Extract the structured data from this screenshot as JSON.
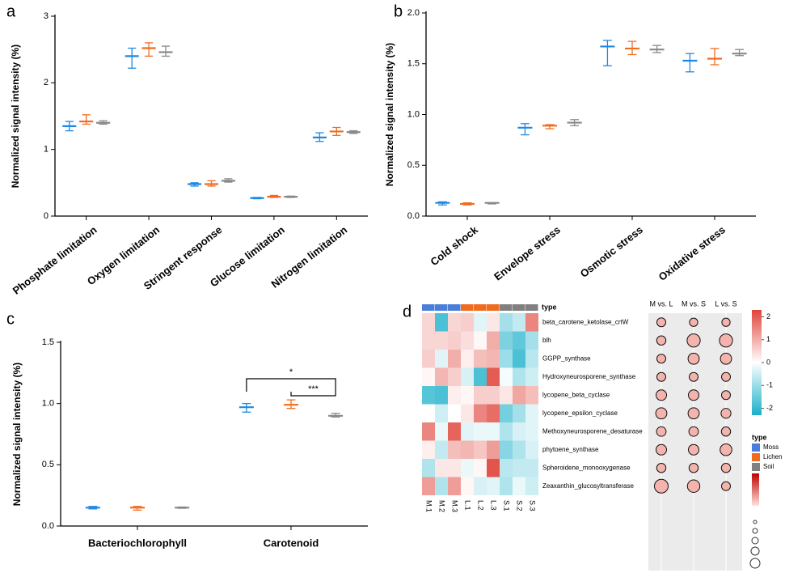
{
  "chart_data": [
    {
      "type": "errorbar",
      "panel_label": "a",
      "y_label": "Normalized signal intensity (%)",
      "categories": [
        "Phosphate limitation",
        "Oxygen limitation",
        "Stringent response",
        "Glucose limitation",
        "Nitrogen limitation"
      ],
      "ylim": [
        0,
        3
      ],
      "yticks": [
        0,
        1,
        2,
        3
      ],
      "series": [
        {
          "color": "#1f88e5",
          "values": [
            1.35,
            2.4,
            0.48,
            0.27,
            1.18
          ],
          "low": [
            1.28,
            2.22,
            0.45,
            0.26,
            1.12
          ],
          "high": [
            1.42,
            2.52,
            0.5,
            0.28,
            1.25
          ]
        },
        {
          "color": "#f26b1d",
          "values": [
            1.42,
            2.52,
            0.48,
            0.29,
            1.27
          ],
          "low": [
            1.38,
            2.4,
            0.45,
            0.28,
            1.21
          ],
          "high": [
            1.52,
            2.6,
            0.53,
            0.31,
            1.33
          ]
        },
        {
          "color": "#888888",
          "values": [
            1.4,
            2.46,
            0.53,
            0.29,
            1.26
          ],
          "low": [
            1.38,
            2.4,
            0.51,
            0.28,
            1.24
          ],
          "high": [
            1.43,
            2.55,
            0.56,
            0.3,
            1.28
          ]
        }
      ]
    },
    {
      "type": "errorbar",
      "panel_label": "b",
      "y_label": "Normalized signal intensity (%)",
      "categories": [
        "Cold shock",
        "Envelope stress",
        "Osmotic stress",
        "Oxidative stress"
      ],
      "ylim": [
        0,
        2
      ],
      "yticks": [
        {
          "value": 0,
          "label": "0.0"
        },
        0.5,
        {
          "value": 1,
          "label": "1.0"
        },
        1.5,
        {
          "value": 2,
          "label": "2.0"
        }
      ],
      "series": [
        {
          "color": "#1f88e5",
          "values": [
            0.13,
            0.87,
            1.67,
            1.53
          ],
          "low": [
            0.11,
            0.8,
            1.48,
            1.42
          ],
          "high": [
            0.14,
            0.91,
            1.73,
            1.6
          ]
        },
        {
          "color": "#f26b1d",
          "values": [
            0.12,
            0.89,
            1.65,
            1.55
          ],
          "low": [
            0.11,
            0.86,
            1.59,
            1.49
          ],
          "high": [
            0.13,
            0.9,
            1.72,
            1.65
          ]
        },
        {
          "color": "#888888",
          "values": [
            0.13,
            0.92,
            1.64,
            1.6
          ],
          "low": [
            0.12,
            0.89,
            1.61,
            1.58
          ],
          "high": [
            0.13,
            0.95,
            1.68,
            1.64
          ]
        }
      ]
    },
    {
      "type": "errorbar",
      "panel_label": "c",
      "y_label": "Normalized signal intensity (%)",
      "categories": [
        "Bacteriochlorophyll",
        "Carotenoid"
      ],
      "ylim": [
        0,
        1.5
      ],
      "yticks": [
        {
          "value": 0,
          "label": "0.0"
        },
        0.5,
        {
          "value": 1,
          "label": "1.0"
        },
        1.5
      ],
      "annotations": [
        "*",
        "***"
      ],
      "series": [
        {
          "color": "#1f88e5",
          "values": [
            0.15,
            0.97
          ],
          "low": [
            0.14,
            0.93
          ],
          "high": [
            0.16,
            1.0
          ]
        },
        {
          "color": "#f26b1d",
          "values": [
            0.15,
            0.99
          ],
          "low": [
            0.13,
            0.96
          ],
          "high": [
            0.16,
            1.03
          ]
        },
        {
          "color": "#888888",
          "values": [
            0.15,
            0.9
          ],
          "low": [
            0.145,
            0.89
          ],
          "high": [
            0.155,
            0.92
          ]
        }
      ]
    },
    {
      "type": "heatmap",
      "panel_label": "d",
      "legend_title": "type",
      "legend": [
        {
          "name": "Moss",
          "color": "#4a7fd9"
        },
        {
          "name": "Lichen",
          "color": "#f06a1f"
        },
        {
          "name": "Soil",
          "color": "#808080"
        }
      ],
      "columns": [
        "M.1",
        "M.2",
        "M.3",
        "L.1",
        "L.2",
        "L.3",
        "S.1",
        "S.2",
        "S.3"
      ],
      "rows": [
        "beta_carotene_ketolase_crtW",
        "blh",
        "GGPP_synthase",
        "Hydroxyneurosporene_synthase",
        "lycopene_beta_cyclase",
        "lycopene_epsilon_cyclase",
        "Methoxyneurosporene_desaturase",
        "phytoene_synthase",
        "Spheroidene_monooxygenase",
        "Zeaxanthin_glucosyltransferase"
      ],
      "values": [
        [
          0.5,
          -1.8,
          0.5,
          0.6,
          -0.3,
          0.3,
          -0.9,
          -0.6,
          1.5
        ],
        [
          0.5,
          0.5,
          0.6,
          0.4,
          0.1,
          1.0,
          -1.3,
          -1.6,
          -0.9
        ],
        [
          0.6,
          -0.3,
          1.0,
          0.2,
          0.8,
          0.9,
          -1.0,
          -1.8,
          -0.7
        ],
        [
          0.1,
          0.9,
          0.6,
          -0.4,
          -1.8,
          2.0,
          -0.1,
          -0.8,
          -0.5
        ],
        [
          -1.7,
          -1.8,
          0.2,
          0.1,
          0.6,
          0.6,
          0.3,
          1.1,
          0.8
        ],
        [
          0.0,
          -0.5,
          0.0,
          0.3,
          1.5,
          1.8,
          -1.4,
          -0.9,
          -0.3
        ],
        [
          1.5,
          -0.2,
          1.9,
          -0.3,
          -0.2,
          -0.2,
          -0.8,
          -0.4,
          -0.3
        ],
        [
          0.2,
          -0.6,
          0.8,
          0.9,
          0.7,
          1.2,
          -1.2,
          -0.8,
          -0.4
        ],
        [
          -0.8,
          0.3,
          0.3,
          -0.2,
          0.1,
          2.1,
          -0.7,
          -0.6,
          -0.6
        ],
        [
          1.2,
          -0.8,
          1.2,
          0.1,
          -0.4,
          -0.3,
          -0.8,
          -0.2,
          -0.5
        ]
      ],
      "clim": [
        -2.3,
        2.3
      ],
      "colors": [
        "#1ab0c9",
        "#ffffff",
        "#e0443a"
      ],
      "colorbar_ticks": [
        2,
        1,
        0,
        -1,
        -2
      ]
    },
    {
      "type": "dotplot",
      "columns": [
        "M vs. L",
        "M vs. S",
        "L vs. S"
      ],
      "color": "#f4b4ad",
      "sizes": [
        [
          1.5,
          1.3,
          1.3
        ],
        [
          1.6,
          2.8,
          2.8
        ],
        [
          1.5,
          2.2,
          2.2
        ],
        [
          1.5,
          1.5,
          1.5
        ],
        [
          2.0,
          2.0,
          1.5
        ],
        [
          2.2,
          2.2,
          1.8
        ],
        [
          1.7,
          1.7,
          1.6
        ],
        [
          2.0,
          2.0,
          2.4
        ],
        [
          1.6,
          1.6,
          1.6
        ],
        [
          3.0,
          2.6,
          1.5
        ]
      ]
    }
  ]
}
